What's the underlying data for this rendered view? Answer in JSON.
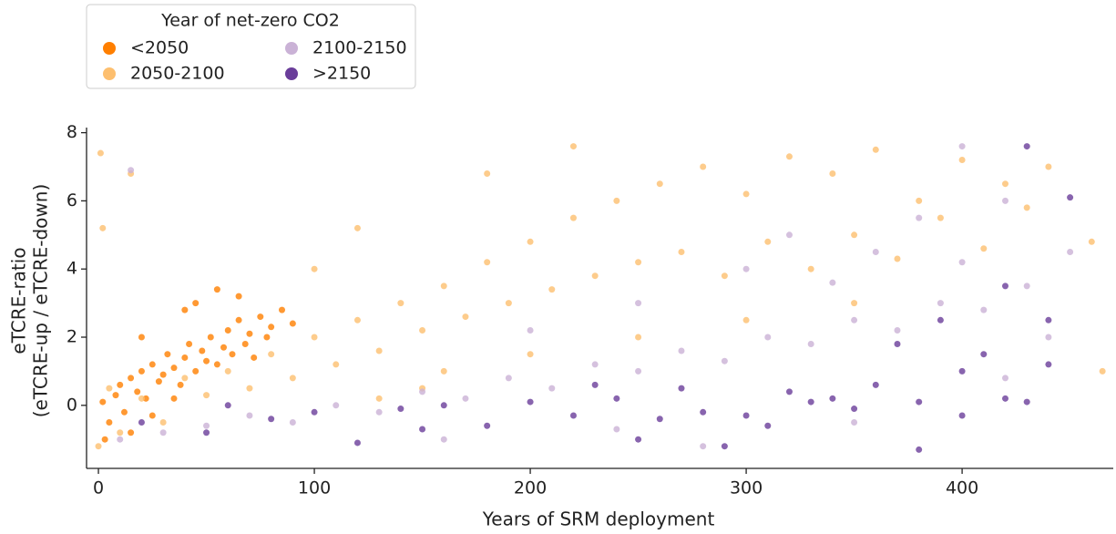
{
  "chart_data": {
    "type": "scatter",
    "legend_title": "Year of net-zero CO2",
    "legend_loc": "upper left",
    "xlabel": "Years of SRM deployment",
    "ylabel": [
      "eTCRE-ratio",
      "(eTCRE-up / eTCRE-down)"
    ],
    "xlim": [
      -5.5,
      470
    ],
    "ylim": [
      -1.85,
      8.15
    ],
    "xticks": [
      0,
      100,
      200,
      300,
      400
    ],
    "yticks": [
      0,
      2,
      4,
      6,
      8
    ],
    "grid": false,
    "series": [
      {
        "name": "<2050",
        "color": "#ff7f00",
        "x": [
          2,
          5,
          8,
          10,
          12,
          15,
          18,
          20,
          22,
          25,
          28,
          30,
          32,
          35,
          38,
          40,
          42,
          45,
          48,
          50,
          52,
          55,
          58,
          60,
          62,
          65,
          68,
          70,
          72,
          75,
          78,
          80,
          85,
          90,
          3,
          15,
          25,
          35,
          45,
          55,
          65,
          20,
          40
        ],
        "values": [
          0.1,
          -0.5,
          0.3,
          0.6,
          -0.2,
          0.8,
          0.4,
          1.0,
          0.2,
          1.2,
          0.7,
          0.9,
          1.5,
          1.1,
          0.6,
          1.4,
          1.8,
          1.0,
          1.6,
          1.3,
          2.0,
          1.2,
          1.7,
          2.2,
          1.5,
          2.5,
          1.8,
          2.1,
          1.4,
          2.6,
          2.0,
          2.3,
          2.8,
          2.4,
          -1.0,
          -0.8,
          -0.3,
          0.2,
          3.0,
          3.4,
          3.2,
          2.0,
          2.8
        ]
      },
      {
        "name": "2050-2100",
        "color": "#fdbf6f",
        "x": [
          0,
          5,
          10,
          20,
          30,
          40,
          50,
          60,
          70,
          80,
          90,
          100,
          110,
          120,
          130,
          140,
          150,
          160,
          170,
          180,
          190,
          200,
          210,
          220,
          230,
          240,
          250,
          260,
          270,
          280,
          290,
          300,
          310,
          320,
          330,
          340,
          350,
          360,
          370,
          380,
          390,
          400,
          410,
          420,
          430,
          440,
          460,
          465,
          150,
          200,
          250,
          300,
          350,
          120,
          180,
          220,
          100,
          130,
          160,
          1,
          2,
          15
        ],
        "values": [
          -1.2,
          0.5,
          -0.8,
          0.2,
          -0.5,
          0.8,
          0.3,
          1.0,
          0.5,
          1.5,
          0.8,
          2.0,
          1.2,
          2.5,
          1.6,
          3.0,
          2.2,
          3.5,
          2.6,
          4.2,
          3.0,
          4.8,
          3.4,
          5.5,
          3.8,
          6.0,
          4.2,
          6.5,
          4.5,
          7.0,
          3.8,
          6.2,
          4.8,
          7.3,
          4.0,
          6.8,
          5.0,
          7.5,
          4.3,
          6.0,
          5.5,
          7.2,
          4.6,
          6.5,
          5.8,
          7.0,
          4.8,
          1.0,
          0.5,
          1.5,
          2.0,
          2.5,
          3.0,
          5.2,
          6.8,
          7.6,
          4.0,
          0.2,
          1.0,
          7.4,
          5.2,
          6.8
        ]
      },
      {
        "name": "2100-2150",
        "color": "#cab2d6",
        "x": [
          10,
          30,
          50,
          70,
          90,
          110,
          130,
          150,
          170,
          190,
          210,
          230,
          250,
          270,
          290,
          310,
          330,
          350,
          370,
          390,
          410,
          430,
          440,
          300,
          320,
          340,
          360,
          380,
          400,
          420,
          400,
          250,
          200,
          280,
          350,
          420,
          450,
          15,
          160,
          240
        ],
        "values": [
          -1.0,
          -0.8,
          -0.6,
          -0.3,
          -0.5,
          0.0,
          -0.2,
          0.4,
          0.2,
          0.8,
          0.5,
          1.2,
          1.0,
          1.6,
          1.3,
          2.0,
          1.8,
          2.5,
          2.2,
          3.0,
          2.8,
          3.5,
          2.0,
          4.0,
          5.0,
          3.6,
          4.5,
          5.5,
          4.2,
          6.0,
          7.6,
          3.0,
          2.2,
          -1.2,
          -0.5,
          0.8,
          4.5,
          6.9,
          -1.0,
          -0.7
        ]
      },
      {
        "name": ">2150",
        "color": "#6a3d9a",
        "x": [
          20,
          50,
          80,
          100,
          120,
          140,
          160,
          180,
          200,
          220,
          240,
          260,
          280,
          300,
          320,
          340,
          360,
          380,
          400,
          420,
          440,
          430,
          410,
          390,
          370,
          350,
          330,
          310,
          290,
          270,
          250,
          420,
          440,
          450,
          430,
          400,
          230,
          150,
          60,
          380
        ],
        "values": [
          -0.5,
          -0.8,
          -0.4,
          -0.2,
          -1.1,
          -0.1,
          0.0,
          -0.6,
          0.1,
          -0.3,
          0.2,
          -0.4,
          -0.2,
          -0.3,
          0.4,
          0.2,
          0.6,
          0.1,
          1.0,
          0.2,
          1.2,
          0.1,
          1.5,
          2.5,
          1.8,
          -0.1,
          0.1,
          -0.6,
          -1.2,
          0.5,
          -1.0,
          3.5,
          2.5,
          6.1,
          7.6,
          -0.3,
          0.6,
          -0.7,
          0.0,
          -1.3
        ]
      }
    ]
  }
}
